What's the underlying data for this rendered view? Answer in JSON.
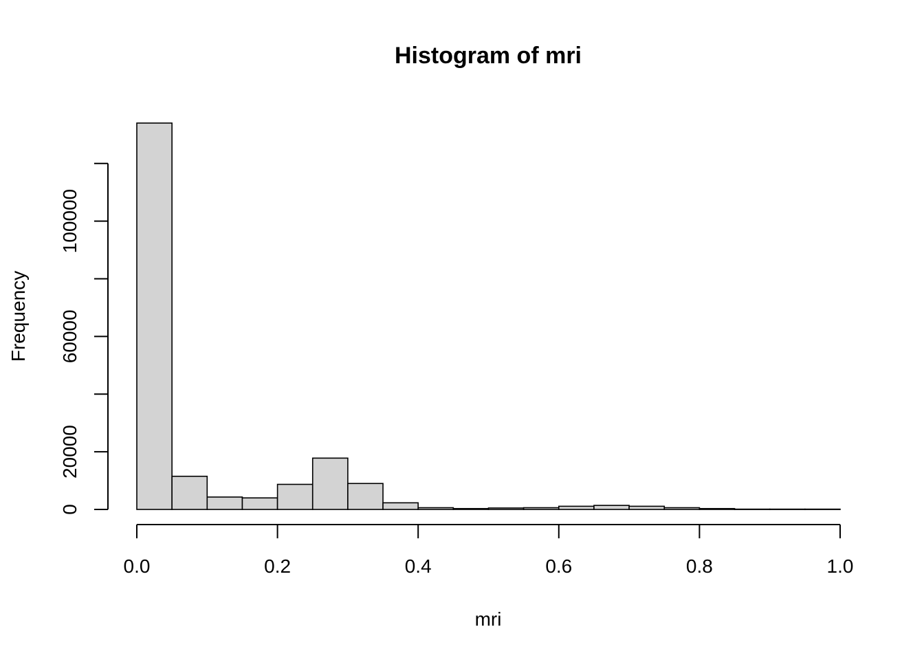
{
  "chart_data": {
    "type": "bar",
    "title": "Histogram of mri",
    "xlabel": "mri",
    "ylabel": "Frequency",
    "xlim": [
      0,
      1
    ],
    "ylim": [
      0,
      134000
    ],
    "grid": false,
    "x_ticks": [
      0,
      0.2,
      0.4,
      0.6,
      0.8,
      1
    ],
    "x_tick_labels": [
      "0.0",
      "0.2",
      "0.4",
      "0.6",
      "0.8",
      "1.0"
    ],
    "y_ticks": [
      0,
      20000,
      40000,
      60000,
      80000,
      100000,
      120000
    ],
    "y_tick_labels": [
      "0",
      "20000",
      "",
      "60000",
      "",
      "100000",
      ""
    ],
    "bin_edges": [
      0,
      0.05,
      0.1,
      0.15,
      0.2,
      0.25,
      0.3,
      0.35,
      0.4,
      0.45,
      0.5,
      0.55,
      0.6,
      0.65,
      0.7,
      0.75,
      0.8,
      0.85,
      0.9,
      0.95,
      1.0
    ],
    "values": [
      134000,
      11500,
      4300,
      4000,
      8700,
      17800,
      9000,
      2300,
      600,
      300,
      500,
      600,
      1100,
      1400,
      1100,
      600,
      300,
      100,
      100,
      100
    ]
  }
}
